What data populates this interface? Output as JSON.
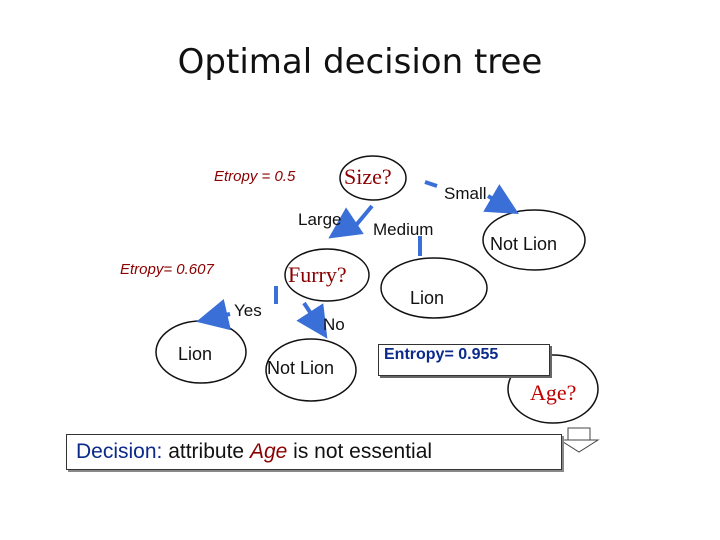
{
  "title": "Optimal decision tree",
  "nodes": {
    "root": "Size?",
    "furry": "Furry?",
    "lion_yes": "Lion",
    "not_lion_no": "Not Lion",
    "lion_medium": "Lion",
    "not_lion_small": "Not Lion",
    "age": "Age?"
  },
  "edges": {
    "large": "Large",
    "medium": "Medium",
    "small": "Small",
    "yes": "Yes",
    "no": "No"
  },
  "entropy": {
    "root": "Etropy = 0.5",
    "furry": "Etropy= 0.607",
    "age": "Entropy= 0.955"
  },
  "decision": {
    "prefix": "Decision:",
    "text1": " attribute ",
    "attr": "Age",
    "text2": " is not essential"
  },
  "colors": {
    "edge": "#3a6fd8",
    "dark_red": "#8b0000",
    "decision_blue": "#0b2a8a",
    "age_red": "#c00000"
  }
}
